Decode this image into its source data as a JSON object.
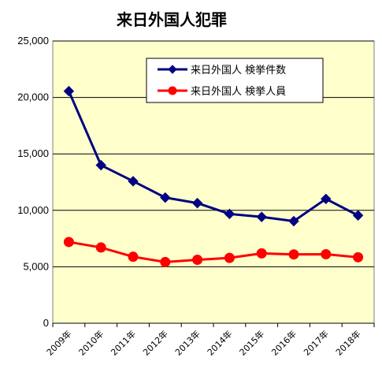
{
  "chart_data": {
    "type": "line",
    "title": "来日外国人犯罪",
    "xlabel": "",
    "ylabel": "",
    "categories": [
      "2009年",
      "2010年",
      "2011年",
      "2012年",
      "2013年",
      "2014年",
      "2015年",
      "2016年",
      "2017年",
      "2018年"
    ],
    "ylim": [
      0,
      25000
    ],
    "yticks": [
      0,
      5000,
      10000,
      15000,
      20000,
      25000
    ],
    "ytick_labels": [
      "0",
      "5,000",
      "10,000",
      "15,000",
      "20,000",
      "25,000"
    ],
    "grid": true,
    "legend_position": "top-right",
    "series": [
      {
        "name": "来日外国人 検挙件数",
        "marker": "diamond",
        "color": "#000080",
        "values": [
          20561,
          13999,
          12582,
          11129,
          10642,
          9684,
          9417,
          9043,
          11012,
          9550
        ]
      },
      {
        "name": "来日外国人 検挙人員",
        "marker": "circle",
        "color": "#ff0000",
        "values": [
          7197,
          6710,
          5889,
          5423,
          5620,
          5787,
          6187,
          6097,
          6113,
          5844
        ]
      }
    ]
  },
  "colors": {
    "plot_background": "#ffffcc",
    "grid": "#000000",
    "series_1": "#000080",
    "series_2": "#ff0000"
  }
}
